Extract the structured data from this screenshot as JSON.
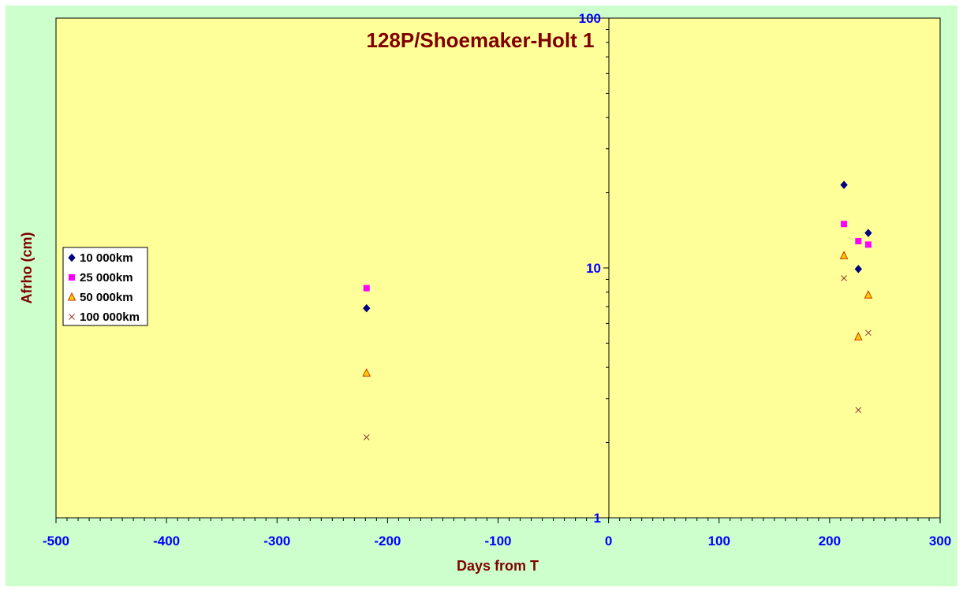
{
  "chart_data": {
    "type": "scatter",
    "title": "128P/Shoemaker-Holt 1",
    "xlabel": "Days from T",
    "ylabel": "Afrho (cm)",
    "xlim": [
      -500,
      300
    ],
    "ylim": [
      1,
      100
    ],
    "y_scale": "log",
    "x_ticks": [
      "-500",
      "-400",
      "-300",
      "-200",
      "-100",
      "0",
      "100",
      "200",
      "300"
    ],
    "y_ticks": [
      "1",
      "10",
      "100"
    ],
    "grid": false,
    "legend_position": "left",
    "series": [
      {
        "name": "10 000km",
        "marker": "diamond",
        "color": "#000080",
        "points": [
          {
            "x": -219,
            "y": 6.9
          },
          {
            "x": 213,
            "y": 21.5
          },
          {
            "x": 226,
            "y": 9.9
          },
          {
            "x": 235,
            "y": 13.8
          }
        ]
      },
      {
        "name": "25 000km",
        "marker": "square",
        "color": "#ff00ff",
        "points": [
          {
            "x": -219,
            "y": 8.3
          },
          {
            "x": 213,
            "y": 15.0
          },
          {
            "x": 226,
            "y": 12.8
          },
          {
            "x": 235,
            "y": 12.4
          }
        ]
      },
      {
        "name": "50 000km",
        "marker": "triangle",
        "color": "#ffcc00",
        "stroke": "#cc3300",
        "points": [
          {
            "x": -219,
            "y": 3.8
          },
          {
            "x": 213,
            "y": 11.2
          },
          {
            "x": 226,
            "y": 5.3
          },
          {
            "x": 235,
            "y": 7.8
          }
        ]
      },
      {
        "name": "100 000km",
        "marker": "x",
        "color": "#993333",
        "points": [
          {
            "x": -219,
            "y": 2.1
          },
          {
            "x": 213,
            "y": 9.1
          },
          {
            "x": 226,
            "y": 2.7
          },
          {
            "x": 235,
            "y": 5.5
          }
        ]
      }
    ]
  },
  "colors": {
    "outer_background": "#ccffcc",
    "plot_background": "#ffff99",
    "tick_label": "#0000ff",
    "title": "#800000",
    "axis_line": "#000000"
  }
}
